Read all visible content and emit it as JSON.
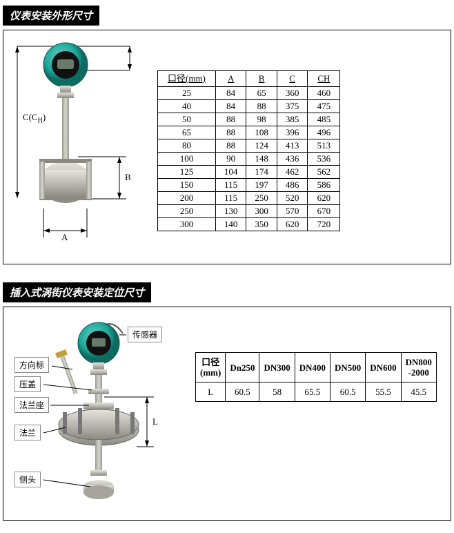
{
  "section1": {
    "title": "仪表安装外形尺寸",
    "diagram": {
      "dim_labels": {
        "A": "A",
        "B": "B",
        "C": "C(C",
        "H": "H",
        "Cparen": ")"
      }
    },
    "table": {
      "headers": [
        "口径(mm)",
        "A",
        "B",
        "C",
        "CH"
      ],
      "rows": [
        [
          "25",
          "84",
          "65",
          "360",
          "460"
        ],
        [
          "40",
          "84",
          "88",
          "375",
          "475"
        ],
        [
          "50",
          "88",
          "98",
          "385",
          "485"
        ],
        [
          "65",
          "88",
          "108",
          "396",
          "496"
        ],
        [
          "80",
          "88",
          "124",
          "413",
          "513"
        ],
        [
          "100",
          "90",
          "148",
          "436",
          "536"
        ],
        [
          "125",
          "104",
          "174",
          "462",
          "562"
        ],
        [
          "150",
          "115",
          "197",
          "486",
          "586"
        ],
        [
          "200",
          "115",
          "250",
          "520",
          "620"
        ],
        [
          "250",
          "130",
          "300",
          "570",
          "670"
        ],
        [
          "300",
          "140",
          "350",
          "620",
          "720"
        ]
      ]
    }
  },
  "section2": {
    "title": "插入式涡街仪表安装定位尺寸",
    "annotations": {
      "sensor": "传感器",
      "direction": "方向标",
      "cover": "压盖",
      "flange_seat": "法兰座",
      "flange": "法兰",
      "side_head": "侧头",
      "L": "L"
    },
    "table": {
      "header": [
        "口径\n(mm)",
        "Dn250",
        "DN300",
        "DN400",
        "DN500",
        "DN600",
        "DN800\n-2000"
      ],
      "row": [
        "L",
        "60.5",
        "58",
        "65.5",
        "60.5",
        "55.5",
        "45.5"
      ]
    }
  },
  "style": {
    "panel_border": "#000000",
    "title_bg": "#000000",
    "title_fg": "#ffffff",
    "meter_head_color": "#1fa99b",
    "meter_body_color": "#b8b8b0",
    "metal_color": "#c3c3bb"
  }
}
